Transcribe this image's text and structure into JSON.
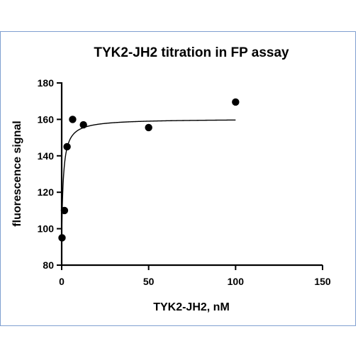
{
  "chart_data": {
    "type": "scatter",
    "title": "TYK2-JH2 titration in FP assay",
    "xlabel": "TYK2-JH2, nM",
    "ylabel": "fluorescence signal",
    "xlim": [
      0,
      150
    ],
    "ylim": [
      80,
      180
    ],
    "xticks": [
      0,
      50,
      100,
      150
    ],
    "yticks": [
      80,
      100,
      120,
      140,
      160,
      180
    ],
    "grid": false,
    "points": [
      {
        "x": 0.2,
        "y": 95
      },
      {
        "x": 1.6,
        "y": 110
      },
      {
        "x": 3.1,
        "y": 145
      },
      {
        "x": 6.3,
        "y": 160
      },
      {
        "x": 12.5,
        "y": 157
      },
      {
        "x": 50,
        "y": 155.5
      },
      {
        "x": 100,
        "y": 169.5
      }
    ],
    "fit": {
      "model": "one-site binding",
      "bottom": 95,
      "top": 160.3,
      "kd": 1.0,
      "x_range": [
        0,
        100
      ]
    },
    "marker_color": "#000000",
    "line_color": "#000000"
  }
}
